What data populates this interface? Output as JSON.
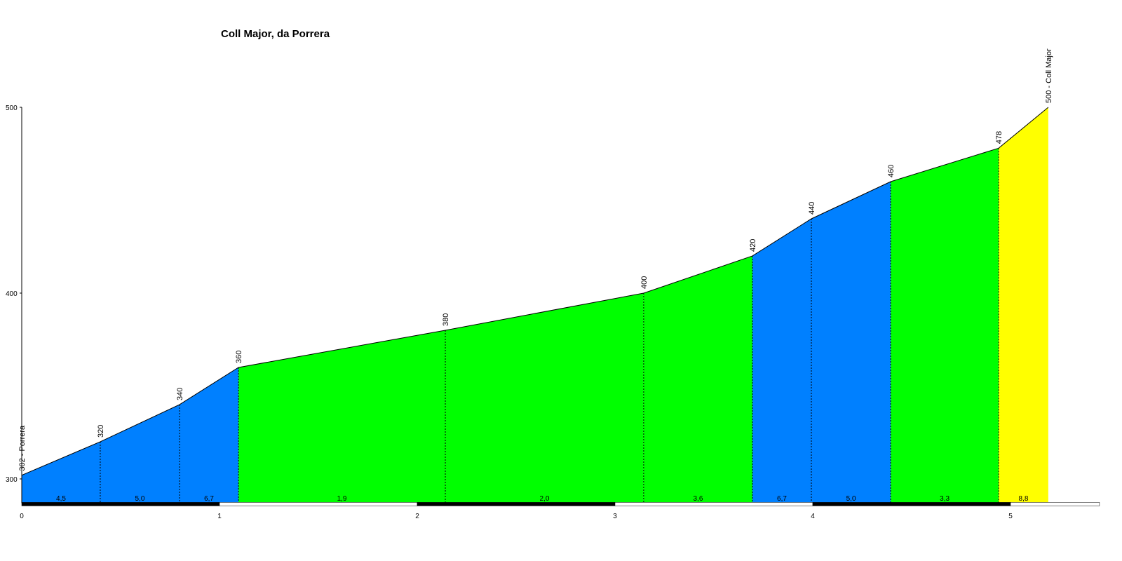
{
  "chart_data": {
    "type": "elevation-profile",
    "title": "Coll Major, da Porrera",
    "x": [
      0,
      0.397,
      0.798,
      1.096,
      2.142,
      3.145,
      3.695,
      3.993,
      4.394,
      4.94,
      5.191
    ],
    "values": [
      302,
      320,
      340,
      360,
      380,
      400,
      420,
      440,
      460,
      478,
      500
    ],
    "value_labels": [
      "302 - Porrera",
      "320",
      "340",
      "360",
      "380",
      "400",
      "420",
      "440",
      "460",
      "478",
      "500 - Coll Major"
    ],
    "segments": {
      "values": [
        4.5,
        5.0,
        6.7,
        1.9,
        2.0,
        3.6,
        6.7,
        5.0,
        3.3,
        8.8
      ],
      "value_labels": [
        "4,5",
        "5,0",
        "6,7",
        "1,9",
        "2,0",
        "3,6",
        "6,7",
        "5,0",
        "3,3",
        "8,8"
      ],
      "colors": [
        "#0080ff",
        "#0080ff",
        "#0080ff",
        "#00ff00",
        "#00ff00",
        "#00ff00",
        "#0080ff",
        "#0080ff",
        "#00ff00",
        "#ffff00"
      ]
    },
    "xlim": [
      0,
      5.45
    ],
    "xticks": [
      0,
      1,
      2,
      3,
      4,
      5
    ],
    "ylim": [
      287,
      500
    ],
    "yticks": [
      300,
      400,
      500
    ]
  }
}
